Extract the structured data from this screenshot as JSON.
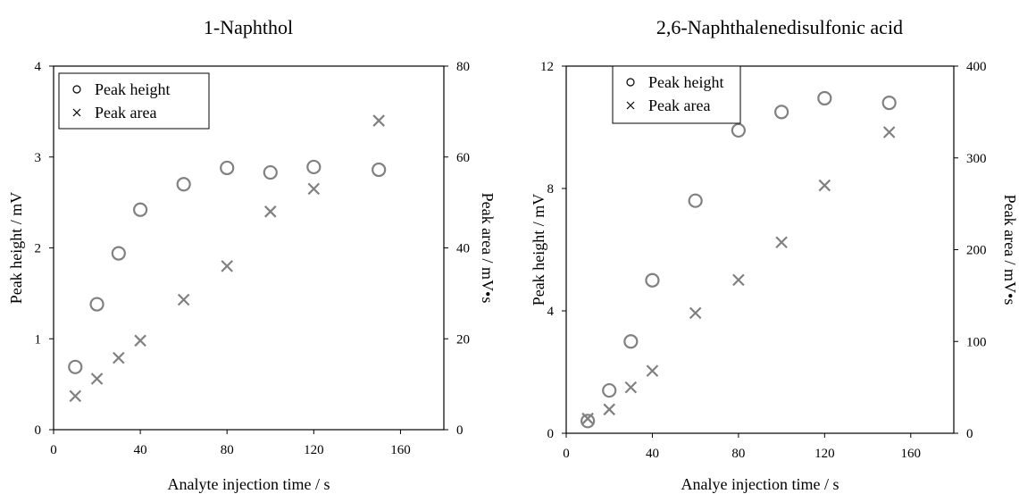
{
  "chart_data": [
    {
      "type": "scatter",
      "title": "1-Naphthol",
      "xlabel": "Analyte injection time / s",
      "ylabel": "Peak height / mV",
      "y2label": "Peak area / mV•s",
      "xlim": [
        0,
        180
      ],
      "ylim": [
        0,
        4
      ],
      "y2lim": [
        0,
        80
      ],
      "xticks": [
        "0",
        "40",
        "80",
        "120",
        "160"
      ],
      "yticks": [
        "0",
        "1",
        "2",
        "3",
        "4"
      ],
      "y2ticks": [
        "0",
        "20",
        "40",
        "60",
        "80"
      ],
      "legend_position": "top-left",
      "grid": false,
      "series": [
        {
          "name": "Peak height",
          "marker": "circle",
          "axis": "left",
          "color": "#808080",
          "x": [
            10,
            20,
            30,
            40,
            60,
            80,
            100,
            120,
            150
          ],
          "y": [
            0.69,
            1.38,
            1.94,
            2.42,
            2.7,
            2.88,
            2.83,
            2.89,
            2.86
          ]
        },
        {
          "name": "Peak area",
          "marker": "x",
          "axis": "right",
          "color": "#808080",
          "x": [
            10,
            20,
            30,
            40,
            60,
            80,
            100,
            120,
            150
          ],
          "y": [
            7.4,
            11.2,
            15.8,
            19.6,
            28.6,
            36.0,
            48.0,
            53.0,
            68.0
          ]
        }
      ]
    },
    {
      "type": "scatter",
      "title": "2,6-Naphthalenedisulfonic  acid",
      "xlabel": "Analye injection time / s",
      "ylabel": "Peak height / mV",
      "y2label": "Peak area / mV•s",
      "xlim": [
        0,
        180
      ],
      "ylim": [
        0,
        12
      ],
      "y2lim": [
        0,
        400
      ],
      "xticks": [
        "0",
        "40",
        "80",
        "120",
        "160"
      ],
      "yticks": [
        "0",
        "4",
        "8",
        "12"
      ],
      "y2ticks": [
        "0",
        "100",
        "200",
        "300",
        "400"
      ],
      "legend_position": "top-left",
      "grid": false,
      "series": [
        {
          "name": "Peak height",
          "marker": "circle",
          "axis": "left",
          "color": "#808080",
          "x": [
            10,
            20,
            30,
            40,
            60,
            80,
            100,
            120,
            150
          ],
          "y": [
            0.4,
            1.4,
            3.0,
            5.0,
            7.6,
            9.9,
            10.5,
            10.95,
            10.8
          ]
        },
        {
          "name": "Peak area",
          "marker": "x",
          "axis": "right",
          "color": "#808080",
          "x": [
            10,
            20,
            30,
            40,
            60,
            80,
            100,
            120,
            150
          ],
          "y": [
            16,
            26,
            50,
            68,
            131,
            167,
            208,
            270,
            328
          ]
        }
      ]
    }
  ]
}
